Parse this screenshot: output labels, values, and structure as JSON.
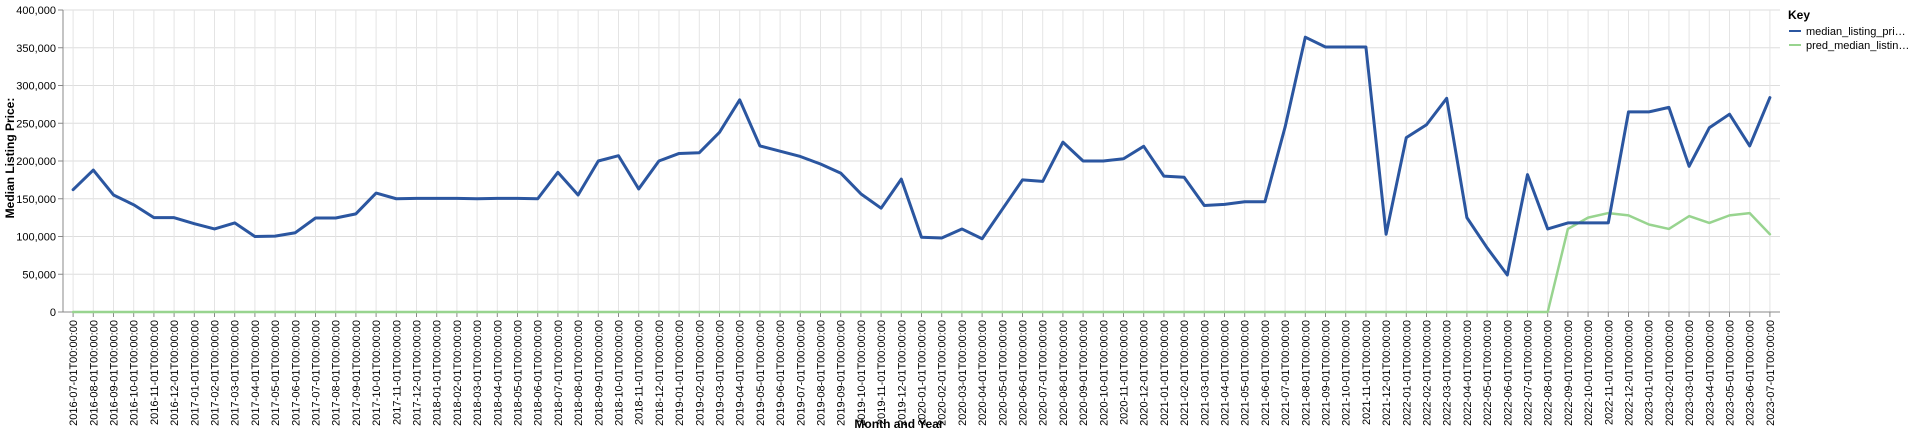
{
  "chart_data": {
    "type": "line",
    "xlabel": "Month and Year",
    "ylabel": "Median Listing Price:",
    "ylim": [
      0,
      400000
    ],
    "y_ticks": [
      "0",
      "50,000",
      "100,000",
      "150,000",
      "200,000",
      "250,000",
      "300,000",
      "350,000",
      "400,000"
    ],
    "y_tick_values": [
      0,
      50000,
      100000,
      150000,
      200000,
      250000,
      300000,
      350000,
      400000
    ],
    "grid": true,
    "legend": {
      "title": "Key",
      "placement": "top-right"
    },
    "x": [
      "2016-07-01T00:00:00",
      "2016-08-01T00:00:00",
      "2016-09-01T00:00:00",
      "2016-10-01T00:00:00",
      "2016-11-01T00:00:00",
      "2016-12-01T00:00:00",
      "2017-01-01T00:00:00",
      "2017-02-01T00:00:00",
      "2017-03-01T00:00:00",
      "2017-04-01T00:00:00",
      "2017-05-01T00:00:00",
      "2017-06-01T00:00:00",
      "2017-07-01T00:00:00",
      "2017-08-01T00:00:00",
      "2017-09-01T00:00:00",
      "2017-10-01T00:00:00",
      "2017-11-01T00:00:00",
      "2017-12-01T00:00:00",
      "2018-01-01T00:00:00",
      "2018-02-01T00:00:00",
      "2018-03-01T00:00:00",
      "2018-04-01T00:00:00",
      "2018-05-01T00:00:00",
      "2018-06-01T00:00:00",
      "2018-07-01T00:00:00",
      "2018-08-01T00:00:00",
      "2018-09-01T00:00:00",
      "2018-10-01T00:00:00",
      "2018-11-01T00:00:00",
      "2018-12-01T00:00:00",
      "2019-01-01T00:00:00",
      "2019-02-01T00:00:00",
      "2019-03-01T00:00:00",
      "2019-04-01T00:00:00",
      "2019-05-01T00:00:00",
      "2019-06-01T00:00:00",
      "2019-07-01T00:00:00",
      "2019-08-01T00:00:00",
      "2019-09-01T00:00:00",
      "2019-10-01T00:00:00",
      "2019-11-01T00:00:00",
      "2019-12-01T00:00:00",
      "2020-01-01T00:00:00",
      "2020-02-01T00:00:00",
      "2020-03-01T00:00:00",
      "2020-04-01T00:00:00",
      "2020-05-01T00:00:00",
      "2020-06-01T00:00:00",
      "2020-07-01T00:00:00",
      "2020-08-01T00:00:00",
      "2020-09-01T00:00:00",
      "2020-10-01T00:00:00",
      "2020-11-01T00:00:00",
      "2020-12-01T00:00:00",
      "2021-01-01T00:00:00",
      "2021-02-01T00:00:00",
      "2021-03-01T00:00:00",
      "2021-04-01T00:00:00",
      "2021-05-01T00:00:00",
      "2021-06-01T00:00:00",
      "2021-07-01T00:00:00",
      "2021-08-01T00:00:00",
      "2021-09-01T00:00:00",
      "2021-10-01T00:00:00",
      "2021-11-01T00:00:00",
      "2021-12-01T00:00:00",
      "2022-01-01T00:00:00",
      "2022-02-01T00:00:00",
      "2022-03-01T00:00:00",
      "2022-04-01T00:00:00",
      "2022-05-01T00:00:00",
      "2022-06-01T00:00:00",
      "2022-07-01T00:00:00",
      "2022-08-01T00:00:00",
      "2022-09-01T00:00:00",
      "2022-10-01T00:00:00",
      "2022-11-01T00:00:00",
      "2022-12-01T00:00:00",
      "2023-01-01T00:00:00",
      "2023-02-01T00:00:00",
      "2023-03-01T00:00:00",
      "2023-04-01T00:00:00",
      "2023-05-01T00:00:00",
      "2023-06-01T00:00:00",
      "2023-07-01T00:00:00"
    ],
    "series": [
      {
        "name": "median_listing_pri…",
        "color": "#2b56a0",
        "values": [
          162000,
          188000,
          155000,
          142000,
          125000,
          125000,
          117000,
          110000,
          118000,
          100000,
          100500,
          105000,
          124500,
          124500,
          130000,
          157500,
          150000,
          150500,
          150500,
          150500,
          150000,
          150500,
          150500,
          150000,
          185000,
          155000,
          200000,
          207000,
          163000,
          200000,
          210000,
          211000,
          238000,
          281000,
          220000,
          213000,
          206000,
          196000,
          184000,
          156500,
          137500,
          176000,
          99000,
          98000,
          110000,
          97000,
          136000,
          175000,
          173000,
          225000,
          200000,
          200000,
          203000,
          219500,
          180000,
          178500,
          141000,
          142500,
          146000,
          146000,
          245000,
          364000,
          351000,
          351000,
          351000,
          103000,
          231000,
          248000,
          283000,
          125000,
          85000,
          49000,
          182000,
          110000,
          118000,
          118000,
          118000,
          265000,
          265000,
          271000,
          193000,
          244000,
          262000,
          220000,
          284000
        ]
      },
      {
        "name": "pred_median_listin…",
        "color": "#98d48f",
        "values": [
          0,
          0,
          0,
          0,
          0,
          0,
          0,
          0,
          0,
          0,
          0,
          0,
          0,
          0,
          0,
          0,
          0,
          0,
          0,
          0,
          0,
          0,
          0,
          0,
          0,
          0,
          0,
          0,
          0,
          0,
          0,
          0,
          0,
          0,
          0,
          0,
          0,
          0,
          0,
          0,
          0,
          0,
          0,
          0,
          0,
          0,
          0,
          0,
          0,
          0,
          0,
          0,
          0,
          0,
          0,
          0,
          0,
          0,
          0,
          0,
          0,
          0,
          0,
          0,
          0,
          0,
          0,
          0,
          0,
          0,
          0,
          0,
          0,
          0,
          110000,
          125000,
          131000,
          128000,
          116000,
          110000,
          127000,
          118000,
          128000,
          131000,
          103000
        ]
      }
    ]
  }
}
